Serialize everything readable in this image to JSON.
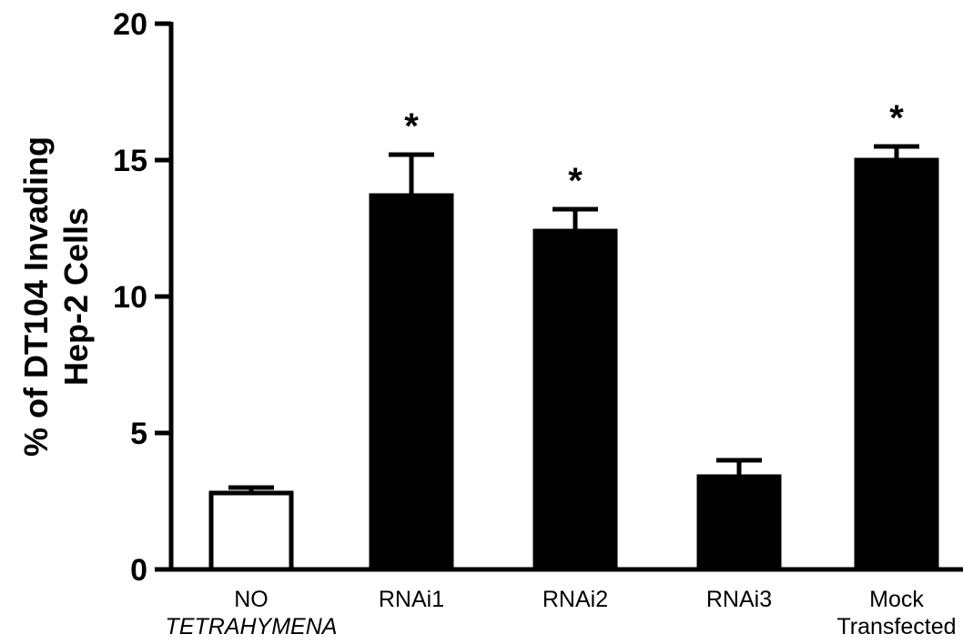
{
  "chart_data": {
    "type": "bar",
    "title": "",
    "ylabel_lines": [
      "% of DT104 Invading",
      "Hep-2 Cells"
    ],
    "xlabel": "",
    "ylim": [
      0,
      20
    ],
    "yticks": [
      0,
      5,
      10,
      15,
      20
    ],
    "categories": [
      {
        "lines": [
          "NO",
          "TETRAHYMENA"
        ],
        "italic_line": 1
      },
      {
        "lines": [
          "RNAi1"
        ],
        "italic_line": -1
      },
      {
        "lines": [
          "RNAi2"
        ],
        "italic_line": -1
      },
      {
        "lines": [
          "RNAi3"
        ],
        "italic_line": -1
      },
      {
        "lines": [
          "Mock",
          "Transfected"
        ],
        "italic_line": -1
      }
    ],
    "values": [
      2.8,
      13.7,
      12.4,
      3.4,
      15.0
    ],
    "error_upper": [
      0.2,
      1.5,
      0.8,
      0.6,
      0.5
    ],
    "bar_fill": [
      "#ffffff",
      "#000000",
      "#000000",
      "#000000",
      "#000000"
    ],
    "annotations": [
      "",
      "*",
      "*",
      "",
      "*"
    ]
  }
}
